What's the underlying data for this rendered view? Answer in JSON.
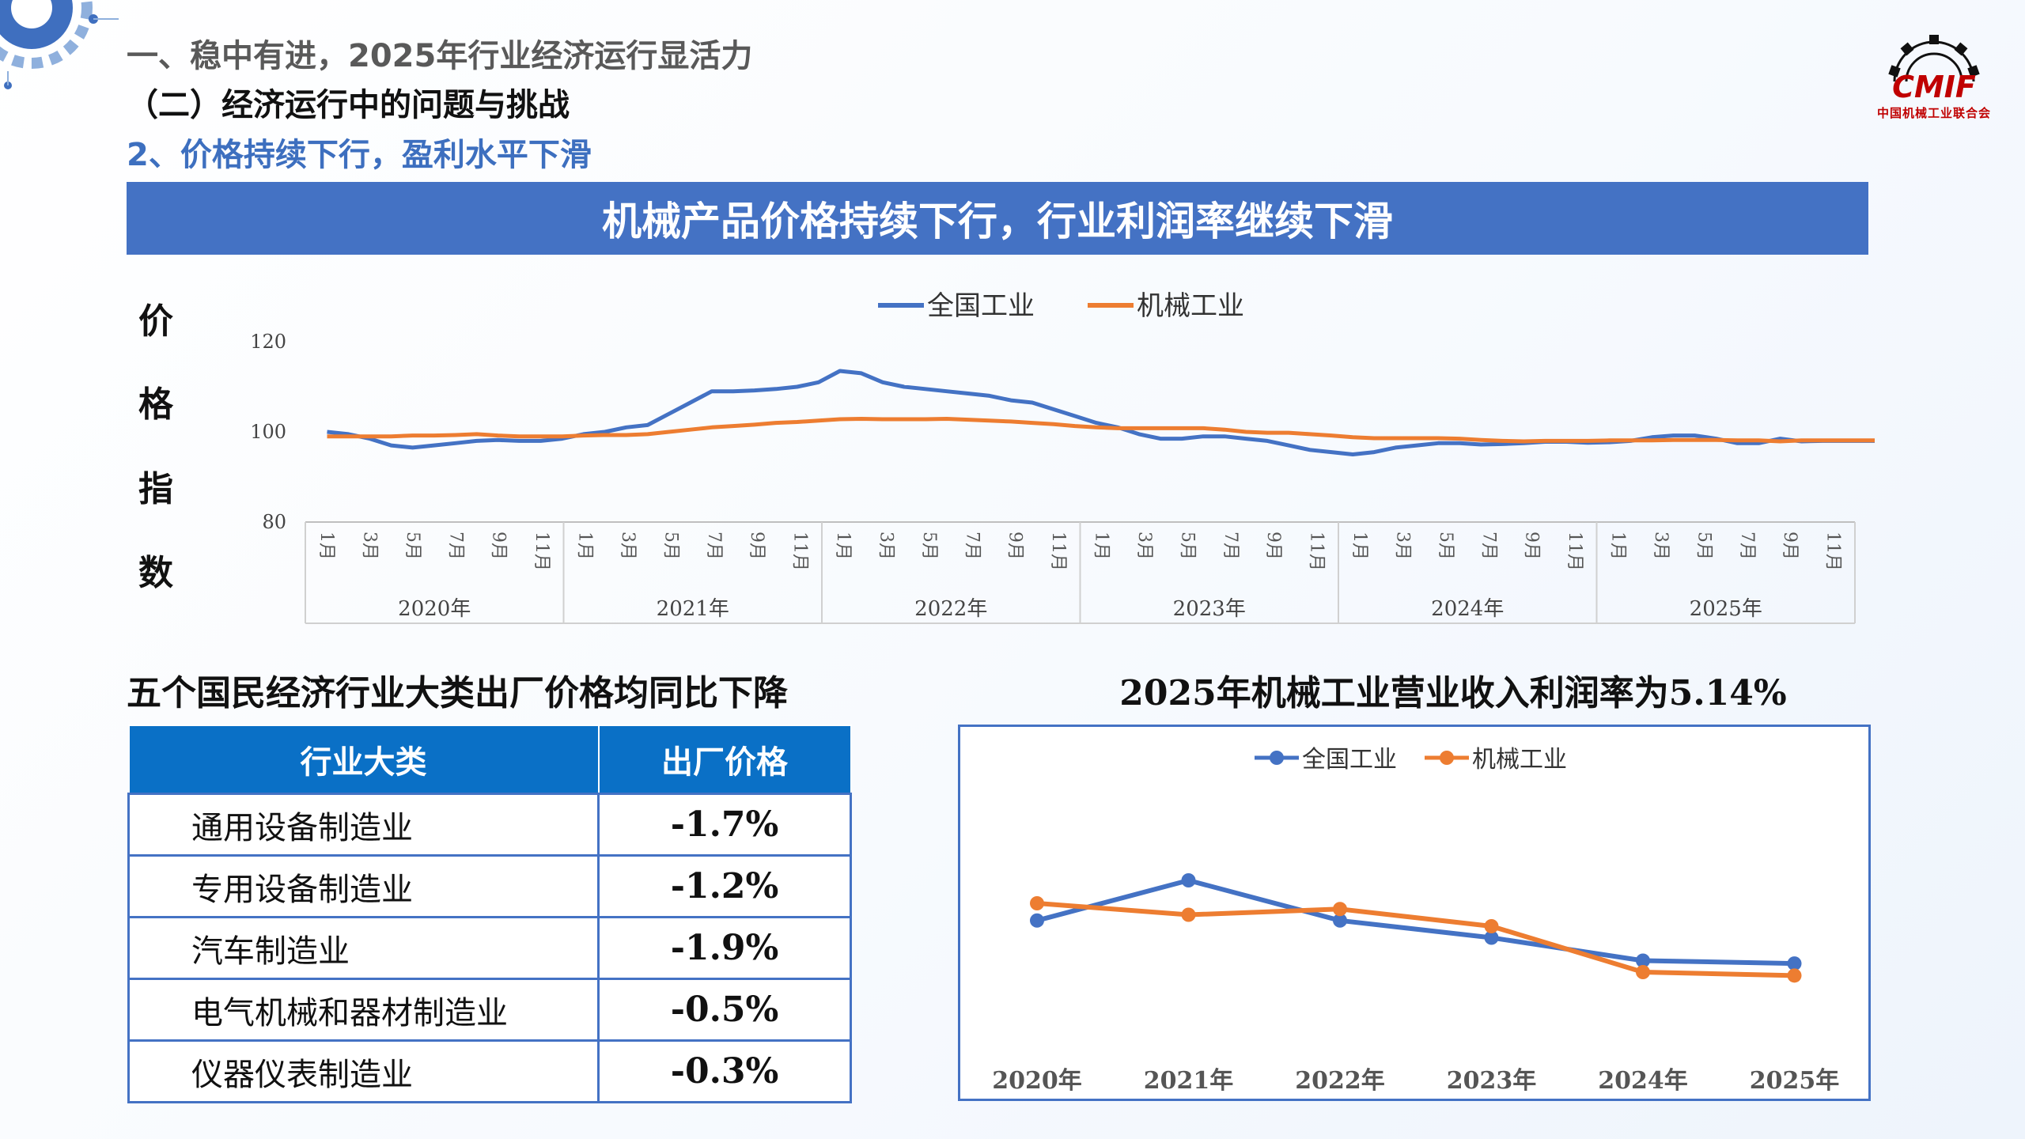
{
  "header": {
    "line1": "一、稳中有进，2025年行业经济运行显活力",
    "line2": "（二）经济运行中的问题与挑战",
    "line3": "2、价格持续下行，盈利水平下滑",
    "logo_text": "CMIF",
    "logo_sub": "中国机械工业联合会"
  },
  "banner": "机械产品价格持续下行，行业利润率继续下滑",
  "price_chart": {
    "ylabel_chars": [
      "价",
      "格",
      "指",
      "数"
    ],
    "colors": {
      "national": "#4472c4",
      "machinery": "#ed7d31"
    },
    "chart_data": {
      "type": "line",
      "ylim": [
        80,
        120
      ],
      "yticks": [
        120,
        100,
        80
      ],
      "legend_position": "top",
      "month_ticks": [
        "1月",
        "3月",
        "5月",
        "7月",
        "9月",
        "11月"
      ],
      "years": [
        "2020年",
        "2021年",
        "2022年",
        "2023年",
        "2024年",
        "2025年"
      ],
      "series": [
        {
          "name": "全国工业",
          "values": [
            100,
            99.5,
            98.5,
            97,
            96.5,
            97,
            97.5,
            98,
            98.2,
            98,
            98,
            98.5,
            99.5,
            100,
            101,
            101.5,
            104,
            106.5,
            109,
            109,
            109.2,
            109.5,
            110,
            111,
            113.5,
            113,
            111,
            110,
            109.5,
            109,
            108.5,
            108,
            107,
            106.5,
            105,
            103.5,
            102,
            101,
            99.5,
            98.5,
            98.5,
            99,
            99,
            98.5,
            98,
            97,
            96,
            95.5,
            95,
            95.5,
            96.5,
            97,
            97.5,
            97.5,
            97.2,
            97.3,
            97.5,
            97.8,
            97.8,
            97.6,
            97.7,
            98,
            98.8,
            99.2,
            99.2,
            98.5,
            97.5,
            97.5,
            98.5,
            97.9,
            98,
            98,
            98,
            98,
            97.8,
            97.6,
            97.4,
            97.2,
            97,
            97,
            97.2,
            97.8,
            98,
            98.1,
            98.2,
            98.4
          ]
        },
        {
          "name": "机械工业",
          "values": [
            99,
            99,
            99,
            99,
            99.2,
            99.2,
            99.3,
            99.5,
            99.2,
            99,
            99,
            99,
            99.2,
            99.3,
            99.3,
            99.5,
            100,
            100.5,
            101,
            101.3,
            101.6,
            102,
            102.2,
            102.5,
            102.8,
            102.9,
            102.8,
            102.8,
            102.8,
            102.9,
            102.7,
            102.5,
            102.3,
            102,
            101.7,
            101.3,
            101,
            100.8,
            100.8,
            100.8,
            100.8,
            100.8,
            100.5,
            100,
            99.8,
            99.8,
            99.5,
            99.2,
            98.8,
            98.6,
            98.6,
            98.6,
            98.6,
            98.5,
            98.2,
            98,
            97.9,
            98,
            98,
            98,
            98.1,
            98.1,
            98.1,
            98.2,
            98.2,
            98.2,
            98.1,
            98.1,
            97.9,
            98.1,
            98.1,
            98.1,
            98.1,
            98.1,
            98.1,
            98.1,
            98.1,
            98.1,
            98.1,
            97.9,
            97.9,
            98,
            98.2,
            98.3,
            98.4,
            98.4
          ]
        }
      ]
    }
  },
  "table": {
    "title": "五个国民经济行业大类出厂价格均同比下降",
    "headers": [
      "行业大类",
      "出厂价格"
    ],
    "rows": [
      {
        "industry": "通用设备制造业",
        "price": "-1.7%"
      },
      {
        "industry": "专用设备制造业",
        "price": "-1.2%"
      },
      {
        "industry": "汽车制造业",
        "price": "-1.9%"
      },
      {
        "industry": "电气机械和器材制造业",
        "price": "-0.5%"
      },
      {
        "industry": "仪器仪表制造业",
        "price": "-0.3%"
      }
    ]
  },
  "profit_chart": {
    "title": "2025年机械工业营业收入利润率为5.14%",
    "chart_data": {
      "type": "line",
      "categories": [
        "2020年",
        "2021年",
        "2022年",
        "2023年",
        "2024年",
        "2025年"
      ],
      "ylim": [
        4,
        8
      ],
      "legend_position": "top",
      "series": [
        {
          "name": "全国工业",
          "values": [
            6.1,
            6.8,
            6.1,
            5.8,
            5.4,
            5.35
          ]
        },
        {
          "name": "机械工业",
          "values": [
            6.4,
            6.2,
            6.3,
            6.0,
            5.2,
            5.14
          ]
        }
      ]
    }
  }
}
